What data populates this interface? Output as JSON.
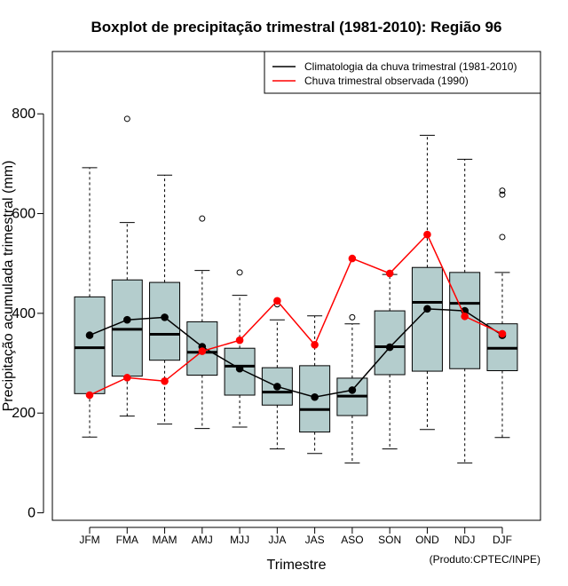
{
  "chart_data": {
    "type": "boxplot",
    "title": "Boxplot de precipitação trimestral (1981-2010): Região 96",
    "xlabel": "Trimestre",
    "ylabel": "Precipitação acumulada trimestral (mm)",
    "ylim": [
      -15,
      925
    ],
    "yticks": [
      0,
      200,
      400,
      600,
      800
    ],
    "categories": [
      "JFM",
      "FMA",
      "MAM",
      "AMJ",
      "MJJ",
      "JJA",
      "JAS",
      "ASO",
      "SON",
      "OND",
      "NDJ",
      "DJF"
    ],
    "boxes": [
      {
        "min": 152,
        "q1": 239,
        "median": 331,
        "q3": 433,
        "max": 692,
        "outliers": []
      },
      {
        "min": 194,
        "q1": 274,
        "median": 368,
        "q3": 467,
        "max": 582,
        "outliers": [
          790
        ]
      },
      {
        "min": 178,
        "q1": 306,
        "median": 358,
        "q3": 462,
        "max": 677,
        "outliers": []
      },
      {
        "min": 169,
        "q1": 276,
        "median": 322,
        "q3": 383,
        "max": 486,
        "outliers": [
          590
        ]
      },
      {
        "min": 172,
        "q1": 236,
        "median": 294,
        "q3": 330,
        "max": 436,
        "outliers": [
          482
        ]
      },
      {
        "min": 128,
        "q1": 216,
        "median": 242,
        "q3": 291,
        "max": 387,
        "outliers": [
          418
        ]
      },
      {
        "min": 119,
        "q1": 162,
        "median": 207,
        "q3": 295,
        "max": 395,
        "outliers": []
      },
      {
        "min": 100,
        "q1": 195,
        "median": 234,
        "q3": 270,
        "max": 379,
        "outliers": [
          392
        ]
      },
      {
        "min": 128,
        "q1": 277,
        "median": 333,
        "q3": 405,
        "max": 478,
        "outliers": []
      },
      {
        "min": 167,
        "q1": 284,
        "median": 422,
        "q3": 492,
        "max": 757,
        "outliers": []
      },
      {
        "min": 100,
        "q1": 289,
        "median": 420,
        "q3": 482,
        "max": 709,
        "outliers": []
      },
      {
        "min": 151,
        "q1": 285,
        "median": 330,
        "q3": 379,
        "max": 482,
        "outliers": [
          553,
          638,
          646
        ]
      }
    ],
    "series": [
      {
        "name": "Climatologia da chuva trimestral (1981-2010)",
        "color": "#000000",
        "values": [
          356,
          387,
          392,
          333,
          289,
          253,
          232,
          246,
          332,
          409,
          405,
          356
        ]
      },
      {
        "name": "Chuva trimestral observada (1990)",
        "color": "#ff0000",
        "values": [
          236,
          271,
          264,
          324,
          346,
          425,
          337,
          510,
          480,
          558,
          394,
          359
        ]
      }
    ],
    "legend_position": "top-right",
    "box_color": "#b4cdcd",
    "annotation": "(Produto:CPTEC/INPE)"
  }
}
